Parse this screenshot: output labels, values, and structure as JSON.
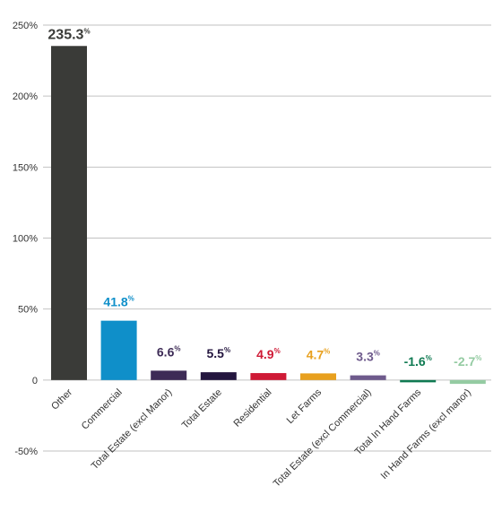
{
  "chart_data": {
    "type": "bar",
    "categories": [
      "Other",
      "Commercial",
      "Total Estate (excl Manor)",
      "Total Estate",
      "Residential",
      "Let Farms",
      "Total Estate (excl Commercial)",
      "Total In Hand Farms",
      "In Hand Farms (excl manor)"
    ],
    "values": [
      235.3,
      41.8,
      6.6,
      5.5,
      4.9,
      4.7,
      3.3,
      -1.6,
      -2.7
    ],
    "data_labels": [
      "235.3",
      "41.8",
      "6.6",
      "5.5",
      "4.9",
      "4.7",
      "3.3",
      "-1.6",
      "-2.7"
    ],
    "data_label_unit": "%",
    "colors": [
      "#3a3b38",
      "#0f8fc9",
      "#3d2b56",
      "#24163f",
      "#cf1a36",
      "#e8a01e",
      "#6e5a8c",
      "#0f7a52",
      "#94cba2"
    ],
    "ylim": [
      -50,
      250
    ],
    "y_ticks": [
      -50,
      0,
      50,
      100,
      150,
      200,
      250
    ],
    "y_tick_labels": [
      "-50%",
      "0",
      "50%",
      "100%",
      "150%",
      "200%",
      "250%"
    ],
    "grid": true,
    "title": "",
    "xlabel": "",
    "ylabel": ""
  }
}
